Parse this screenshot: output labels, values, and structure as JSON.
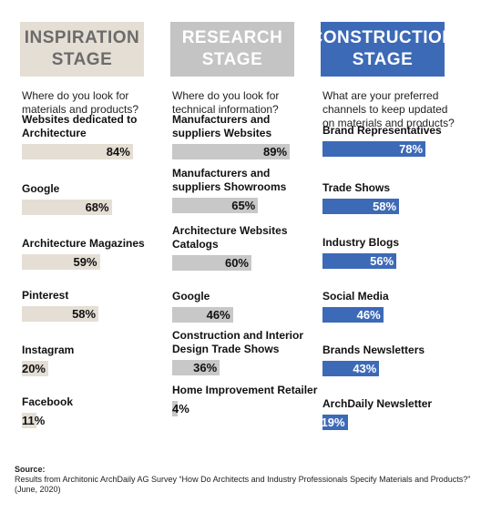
{
  "chart_data": [
    {
      "type": "bar",
      "title": "INSPIRATION STAGE",
      "subtitle": "Where do you look for materials and products?",
      "categories": [
        "Websites dedicated to Architecture",
        "Google",
        "Architecture Magazines",
        "Pinterest",
        "Instagram",
        "Facebook"
      ],
      "values": [
        84,
        68,
        59,
        58,
        20,
        11
      ],
      "value_labels": [
        "84%",
        "68%",
        "59%",
        "58%",
        "20%",
        "11%"
      ],
      "unit": "%",
      "bar_color": "#e5ded4",
      "header_color": "#e5ded4",
      "header_text_color": "#6b6b6b"
    },
    {
      "type": "bar",
      "title": "RESEARCH STAGE",
      "subtitle": "Where do you look for technical information?",
      "categories": [
        "Manufacturers and suppliers Websites",
        "Manufacturers and suppliers Showrooms",
        "Architecture Websites Catalogs",
        "Google",
        "Construction and Interior Design Trade Shows",
        "Home Improvement Retailer"
      ],
      "values": [
        89,
        65,
        60,
        46,
        36,
        4
      ],
      "value_labels": [
        "89%",
        "65%",
        "60%",
        "46%",
        "36%",
        "4%"
      ],
      "unit": "%",
      "bar_color": "#c8c8c8",
      "header_color": "#c4c4c4",
      "header_text_color": "#ffffff"
    },
    {
      "type": "bar",
      "title": "CONSTRUCTION STAGE",
      "subtitle": "What are your preferred channels to keep updated on materials and products?",
      "categories": [
        "Brand Representatives",
        "Trade Shows",
        "Industry Blogs",
        "Social Media",
        "Brands Newsletters",
        "ArchDaily Newsletter"
      ],
      "values": [
        78,
        58,
        56,
        46,
        43,
        19
      ],
      "value_labels": [
        "78%",
        "58%",
        "56%",
        "46%",
        "43%",
        "19%"
      ],
      "unit": "%",
      "bar_color": "#3d6ab7",
      "header_color": "#3d6ab7",
      "header_text_color": "#ffffff"
    }
  ],
  "title_lines": [
    [
      "INSPIRATION",
      "STAGE"
    ],
    [
      "RESEARCH",
      "STAGE"
    ],
    [
      "CONSTRUCTION",
      "STAGE"
    ]
  ],
  "source": {
    "label": "Source:",
    "text": "Results from Architonic ArchDaily AG Survey “How Do Architects and Industry  Professionals Specify Materials and Products?” (June, 2020)"
  }
}
